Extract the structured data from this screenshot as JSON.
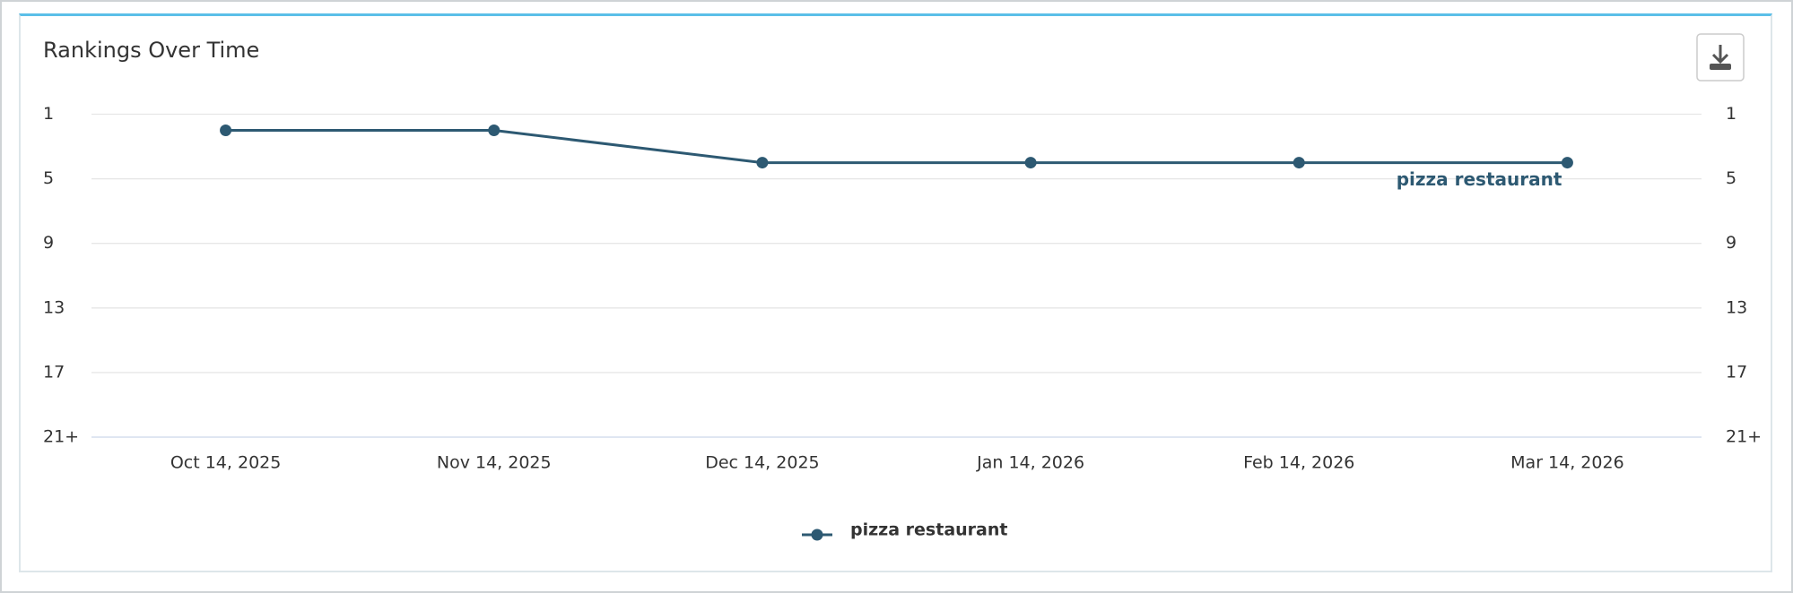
{
  "chart_data": {
    "type": "line",
    "title": "Rankings Over Time",
    "categories": [
      "Oct 14, 2025",
      "Nov 14, 2025",
      "Dec 14, 2025",
      "Jan 14, 2026",
      "Feb 14, 2026",
      "Mar 14, 2026"
    ],
    "series": [
      {
        "name": "pizza restaurant",
        "color": "#2d5972",
        "values": [
          2,
          2,
          4,
          4,
          4,
          4
        ]
      }
    ],
    "ylim": [
      1,
      21
    ],
    "y_reversed": true,
    "yticks": [
      1,
      5,
      9,
      13,
      17,
      {
        "value": 21,
        "label": "21+"
      }
    ],
    "grid": true,
    "legend": "bottom"
  }
}
